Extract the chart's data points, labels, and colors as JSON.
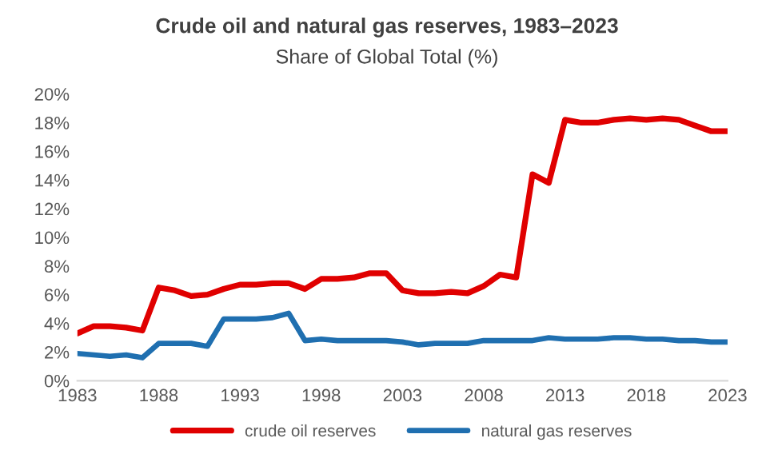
{
  "chart_data": {
    "type": "line",
    "title": "Crude oil and natural gas reserves, 1983–2023",
    "subtitle": "Share of Global Total (%)",
    "x": [
      1983,
      1984,
      1985,
      1986,
      1987,
      1988,
      1989,
      1990,
      1991,
      1992,
      1993,
      1994,
      1995,
      1996,
      1997,
      1998,
      1999,
      2000,
      2001,
      2002,
      2003,
      2004,
      2005,
      2006,
      2007,
      2008,
      2009,
      2010,
      2011,
      2012,
      2013,
      2014,
      2015,
      2016,
      2017,
      2018,
      2019,
      2020,
      2021,
      2022,
      2023
    ],
    "series": [
      {
        "name": "crude oil reserves",
        "color": "#e00000",
        "values": [
          3.3,
          3.8,
          3.8,
          3.7,
          3.5,
          6.5,
          6.3,
          5.9,
          6.0,
          6.4,
          6.7,
          6.7,
          6.8,
          6.8,
          6.4,
          7.1,
          7.1,
          7.2,
          7.5,
          7.5,
          6.3,
          6.1,
          6.1,
          6.2,
          6.1,
          6.6,
          7.4,
          7.2,
          14.4,
          13.8,
          18.2,
          18.0,
          18.0,
          18.2,
          18.3,
          18.2,
          18.3,
          18.2,
          17.8,
          17.4,
          17.4
        ]
      },
      {
        "name": "natural gas reserves",
        "color": "#1f6fb0",
        "values": [
          1.9,
          1.8,
          1.7,
          1.8,
          1.6,
          2.6,
          2.6,
          2.6,
          2.4,
          4.3,
          4.3,
          4.3,
          4.4,
          4.7,
          2.8,
          2.9,
          2.8,
          2.8,
          2.8,
          2.8,
          2.7,
          2.5,
          2.6,
          2.6,
          2.6,
          2.8,
          2.8,
          2.8,
          2.8,
          3.0,
          2.9,
          2.9,
          2.9,
          3.0,
          3.0,
          2.9,
          2.9,
          2.8,
          2.8,
          2.7,
          2.7
        ]
      }
    ],
    "xlim": [
      1983,
      2023
    ],
    "xticks": [
      1983,
      1988,
      1993,
      1998,
      2003,
      2008,
      2013,
      2018,
      2023
    ],
    "ylim": [
      0,
      20
    ],
    "yticks": [
      {
        "value": 0,
        "label": "0%"
      },
      {
        "value": 2,
        "label": "2%"
      },
      {
        "value": 4,
        "label": "4%"
      },
      {
        "value": 6,
        "label": "6%"
      },
      {
        "value": 8,
        "label": "8%"
      },
      {
        "value": 10,
        "label": "10%"
      },
      {
        "value": 12,
        "label": "12%"
      },
      {
        "value": 14,
        "label": "14%"
      },
      {
        "value": 16,
        "label": "16%"
      },
      {
        "value": 18,
        "label": "18%"
      },
      {
        "value": 20,
        "label": "20%"
      }
    ],
    "grid": false,
    "legend": "bottom",
    "marker": "none",
    "line_style": "solid"
  }
}
